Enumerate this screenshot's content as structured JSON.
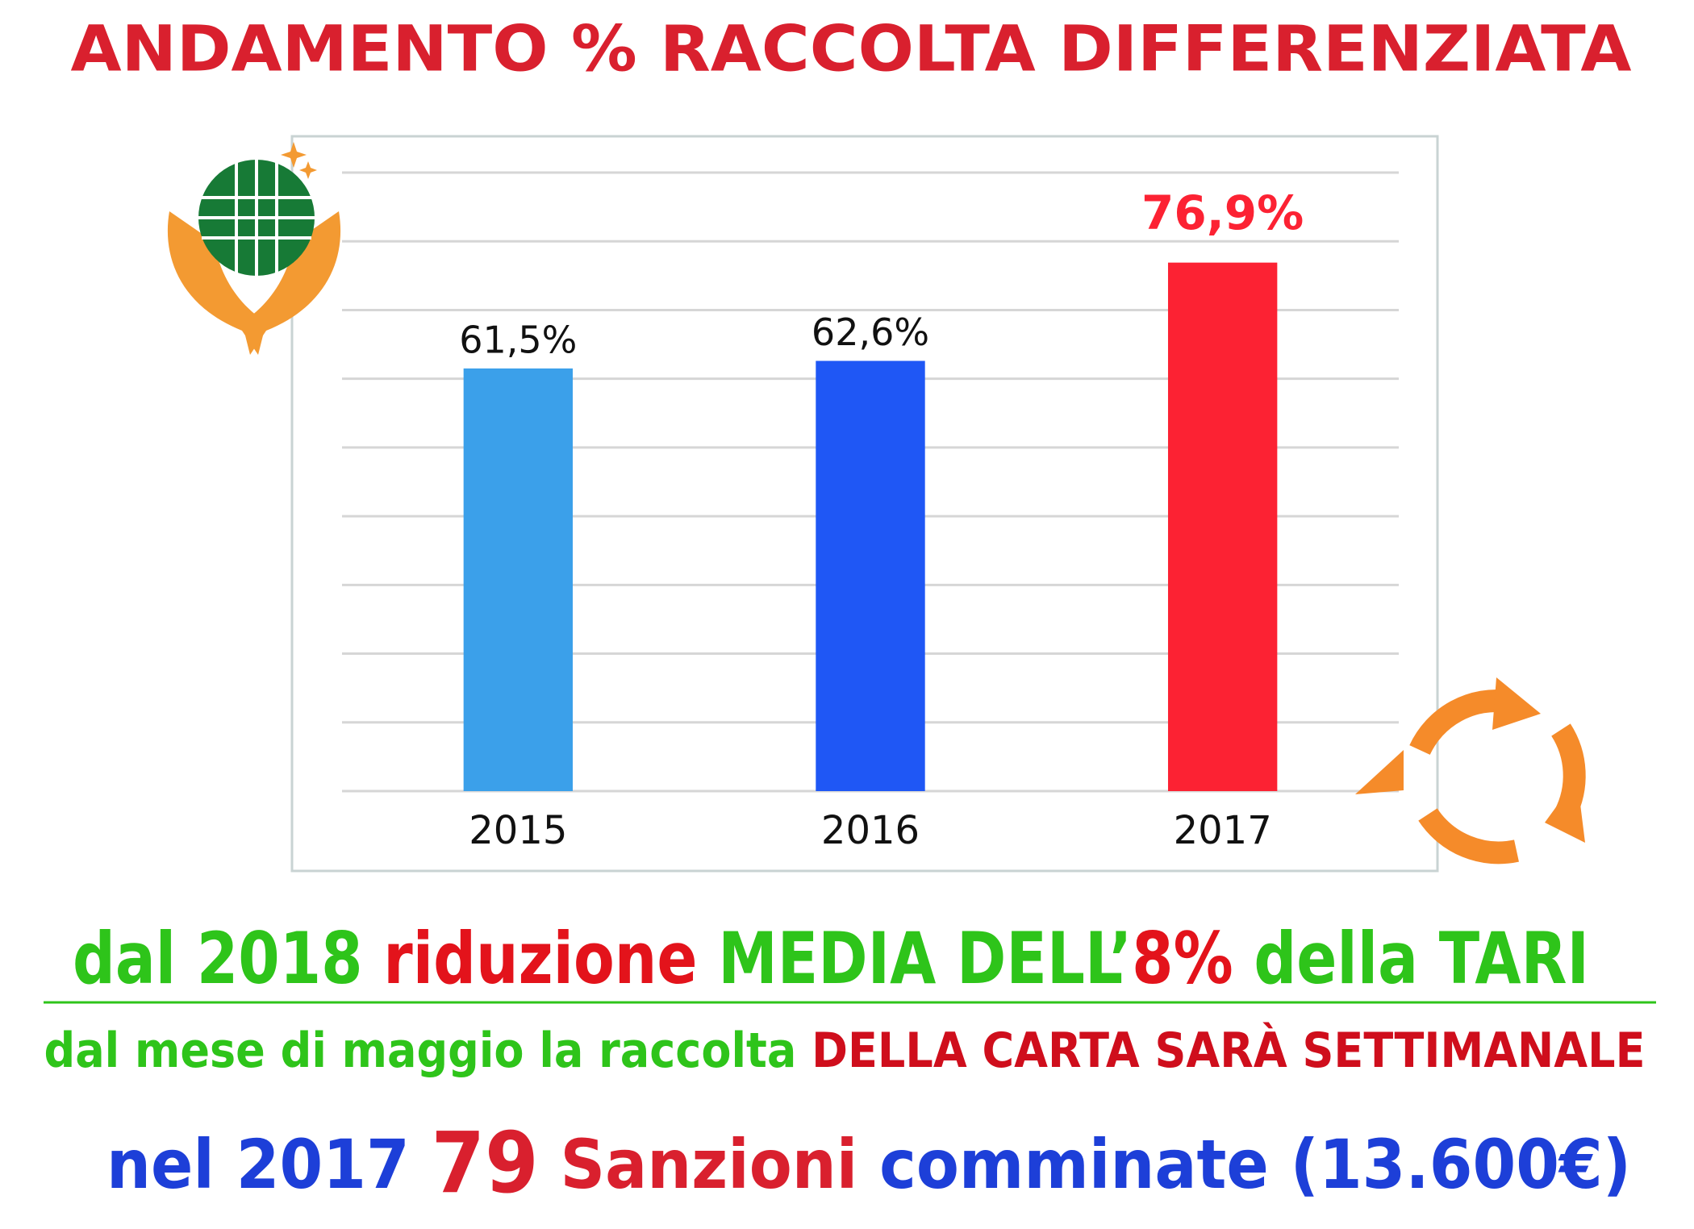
{
  "chart_data": {
    "type": "bar",
    "title": "ANDAMENTO % RACCOLTA DIFFERENZIATA",
    "categories": [
      "2015",
      "2016",
      "2017"
    ],
    "values": [
      61.5,
      62.6,
      76.9
    ],
    "value_labels": [
      "61,5%",
      "62,6%",
      "76,9%"
    ],
    "colors": [
      "#3ba0ea",
      "#1f57f5",
      "#fc2233"
    ],
    "ylim": [
      0,
      90
    ],
    "yticks": [
      0,
      10,
      20,
      30,
      40,
      50,
      60,
      70,
      80,
      90
    ],
    "grid": true
  },
  "notes": {
    "line1": [
      "dal",
      "2018",
      "riduzione",
      "MEDIA DELL’",
      "8%",
      "della TARI"
    ],
    "line2": [
      "dal mese di maggio la raccolta",
      "DELLA CARTA SARÀ SETTIMANALE"
    ],
    "line3": [
      "nel",
      "2017",
      "79",
      "Sanzioni",
      "comminate",
      "(13.600€)"
    ]
  }
}
